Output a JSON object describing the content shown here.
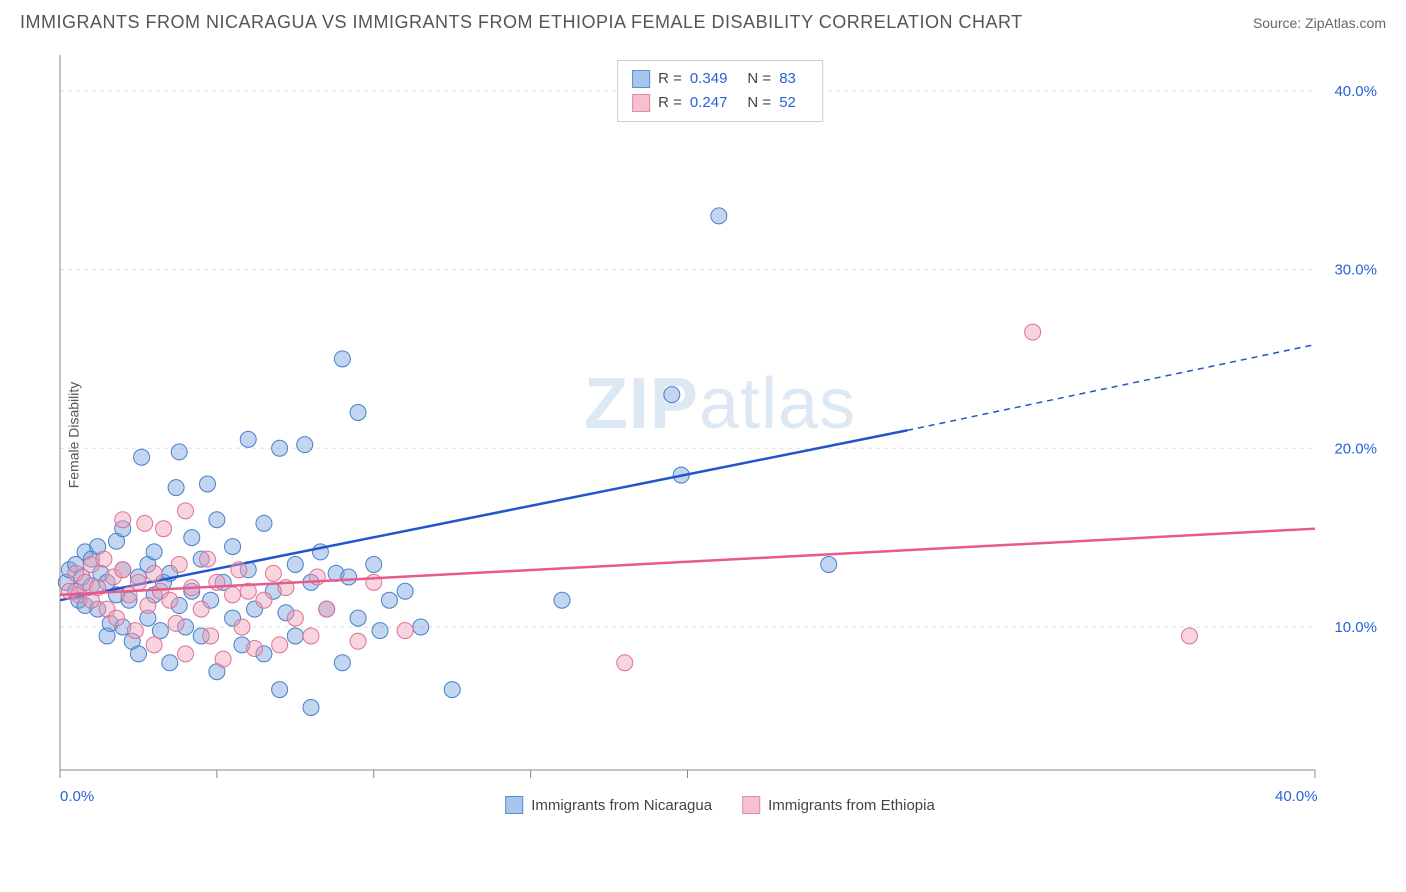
{
  "header": {
    "title": "IMMIGRANTS FROM NICARAGUA VS IMMIGRANTS FROM ETHIOPIA FEMALE DISABILITY CORRELATION CHART",
    "source": "Source: ZipAtlas.com"
  },
  "watermark": {
    "part1": "ZIP",
    "part2": "atlas"
  },
  "chart": {
    "type": "scatter",
    "ylabel": "Female Disability",
    "xlim": [
      0,
      40
    ],
    "ylim": [
      2,
      42
    ],
    "xticks": [
      0,
      5,
      10,
      15,
      20,
      40
    ],
    "yticks": [
      10,
      20,
      30,
      40
    ],
    "x_axis_labels": {
      "min": "0.0%",
      "max": "40.0%"
    },
    "y_axis_tick_labels": [
      "10.0%",
      "20.0%",
      "30.0%",
      "40.0%"
    ],
    "grid_color": "#dddddd",
    "axis_color": "#888888",
    "background": "#ffffff",
    "legend_top": [
      {
        "swatch_fill": "#a8c5ec",
        "swatch_stroke": "#5b8bd4",
        "r_label": "R =",
        "r_val": "0.349",
        "n_label": "N =",
        "n_val": "83"
      },
      {
        "swatch_fill": "#f5c1ce",
        "swatch_stroke": "#e48ba5",
        "r_label": "R =",
        "r_val": "0.247",
        "n_label": "N =",
        "n_val": "52"
      }
    ],
    "legend_bottom": [
      {
        "swatch_fill": "#a8c5ec",
        "swatch_stroke": "#5b8bd4",
        "label": "Immigrants from Nicaragua"
      },
      {
        "swatch_fill": "#f5c1ce",
        "swatch_stroke": "#e48ba5",
        "label": "Immigrants from Ethiopia"
      }
    ],
    "series": [
      {
        "name": "nicaragua",
        "marker_fill": "rgba(120,165,225,0.45)",
        "marker_stroke": "#4a7fc9",
        "marker_r": 8,
        "trend_color": "#2255cc",
        "trend_solid": {
          "x1": 0,
          "y1": 11.5,
          "x2": 27,
          "y2": 21.0
        },
        "trend_dashed": {
          "x1": 27,
          "y1": 21.0,
          "x2": 40,
          "y2": 25.8
        },
        "points": [
          [
            0.2,
            12.5
          ],
          [
            0.3,
            13.2
          ],
          [
            0.5,
            12.0
          ],
          [
            0.5,
            13.5
          ],
          [
            0.6,
            11.5
          ],
          [
            0.7,
            12.8
          ],
          [
            0.8,
            14.2
          ],
          [
            0.8,
            11.2
          ],
          [
            1.0,
            13.8
          ],
          [
            1.0,
            12.3
          ],
          [
            1.2,
            14.5
          ],
          [
            1.2,
            11.0
          ],
          [
            1.3,
            13.0
          ],
          [
            1.5,
            12.5
          ],
          [
            1.5,
            9.5
          ],
          [
            1.6,
            10.2
          ],
          [
            1.8,
            11.8
          ],
          [
            1.8,
            14.8
          ],
          [
            2.0,
            13.2
          ],
          [
            2.0,
            10.0
          ],
          [
            2.0,
            15.5
          ],
          [
            2.2,
            11.5
          ],
          [
            2.3,
            9.2
          ],
          [
            2.5,
            12.8
          ],
          [
            2.5,
            8.5
          ],
          [
            2.6,
            19.5
          ],
          [
            2.8,
            13.5
          ],
          [
            2.8,
            10.5
          ],
          [
            3.0,
            11.8
          ],
          [
            3.0,
            14.2
          ],
          [
            3.2,
            9.8
          ],
          [
            3.3,
            12.5
          ],
          [
            3.5,
            8.0
          ],
          [
            3.5,
            13.0
          ],
          [
            3.7,
            17.8
          ],
          [
            3.8,
            11.2
          ],
          [
            3.8,
            19.8
          ],
          [
            4.0,
            10.0
          ],
          [
            4.2,
            15.0
          ],
          [
            4.2,
            12.0
          ],
          [
            4.5,
            9.5
          ],
          [
            4.5,
            13.8
          ],
          [
            4.7,
            18.0
          ],
          [
            4.8,
            11.5
          ],
          [
            5.0,
            7.5
          ],
          [
            5.0,
            16.0
          ],
          [
            5.2,
            12.5
          ],
          [
            5.5,
            10.5
          ],
          [
            5.5,
            14.5
          ],
          [
            5.8,
            9.0
          ],
          [
            6.0,
            13.2
          ],
          [
            6.0,
            20.5
          ],
          [
            6.2,
            11.0
          ],
          [
            6.5,
            15.8
          ],
          [
            6.5,
            8.5
          ],
          [
            6.8,
            12.0
          ],
          [
            7.0,
            6.5
          ],
          [
            7.0,
            20.0
          ],
          [
            7.2,
            10.8
          ],
          [
            7.5,
            13.5
          ],
          [
            7.5,
            9.5
          ],
          [
            7.8,
            20.2
          ],
          [
            8.0,
            12.5
          ],
          [
            8.0,
            5.5
          ],
          [
            8.3,
            14.2
          ],
          [
            8.5,
            11.0
          ],
          [
            8.8,
            13.0
          ],
          [
            9.0,
            8.0
          ],
          [
            9.0,
            25.0
          ],
          [
            9.2,
            12.8
          ],
          [
            9.5,
            10.5
          ],
          [
            9.5,
            22.0
          ],
          [
            10.0,
            13.5
          ],
          [
            10.2,
            9.8
          ],
          [
            10.5,
            11.5
          ],
          [
            11.0,
            12.0
          ],
          [
            11.5,
            10.0
          ],
          [
            12.5,
            6.5
          ],
          [
            16.0,
            11.5
          ],
          [
            19.5,
            23.0
          ],
          [
            19.8,
            18.5
          ],
          [
            21.0,
            33.0
          ],
          [
            24.5,
            13.5
          ]
        ]
      },
      {
        "name": "ethiopia",
        "marker_fill": "rgba(240,160,185,0.45)",
        "marker_stroke": "#e07095",
        "marker_r": 8,
        "trend_color": "#e85a8a",
        "trend_solid": {
          "x1": 0,
          "y1": 11.8,
          "x2": 40,
          "y2": 15.5
        },
        "trend_dashed": null,
        "points": [
          [
            0.3,
            12.0
          ],
          [
            0.5,
            13.0
          ],
          [
            0.6,
            11.8
          ],
          [
            0.8,
            12.5
          ],
          [
            1.0,
            13.5
          ],
          [
            1.0,
            11.5
          ],
          [
            1.2,
            12.2
          ],
          [
            1.4,
            13.8
          ],
          [
            1.5,
            11.0
          ],
          [
            1.7,
            12.8
          ],
          [
            1.8,
            10.5
          ],
          [
            2.0,
            13.2
          ],
          [
            2.0,
            16.0
          ],
          [
            2.2,
            11.8
          ],
          [
            2.4,
            9.8
          ],
          [
            2.5,
            12.5
          ],
          [
            2.7,
            15.8
          ],
          [
            2.8,
            11.2
          ],
          [
            3.0,
            13.0
          ],
          [
            3.0,
            9.0
          ],
          [
            3.2,
            12.0
          ],
          [
            3.3,
            15.5
          ],
          [
            3.5,
            11.5
          ],
          [
            3.7,
            10.2
          ],
          [
            3.8,
            13.5
          ],
          [
            4.0,
            8.5
          ],
          [
            4.0,
            16.5
          ],
          [
            4.2,
            12.2
          ],
          [
            4.5,
            11.0
          ],
          [
            4.7,
            13.8
          ],
          [
            4.8,
            9.5
          ],
          [
            5.0,
            12.5
          ],
          [
            5.2,
            8.2
          ],
          [
            5.5,
            11.8
          ],
          [
            5.7,
            13.2
          ],
          [
            5.8,
            10.0
          ],
          [
            6.0,
            12.0
          ],
          [
            6.2,
            8.8
          ],
          [
            6.5,
            11.5
          ],
          [
            6.8,
            13.0
          ],
          [
            7.0,
            9.0
          ],
          [
            7.2,
            12.2
          ],
          [
            7.5,
            10.5
          ],
          [
            8.0,
            9.5
          ],
          [
            8.2,
            12.8
          ],
          [
            8.5,
            11.0
          ],
          [
            9.5,
            9.2
          ],
          [
            10.0,
            12.5
          ],
          [
            11.0,
            9.8
          ],
          [
            18.0,
            8.0
          ],
          [
            31.0,
            26.5
          ],
          [
            36.0,
            9.5
          ]
        ]
      }
    ]
  }
}
